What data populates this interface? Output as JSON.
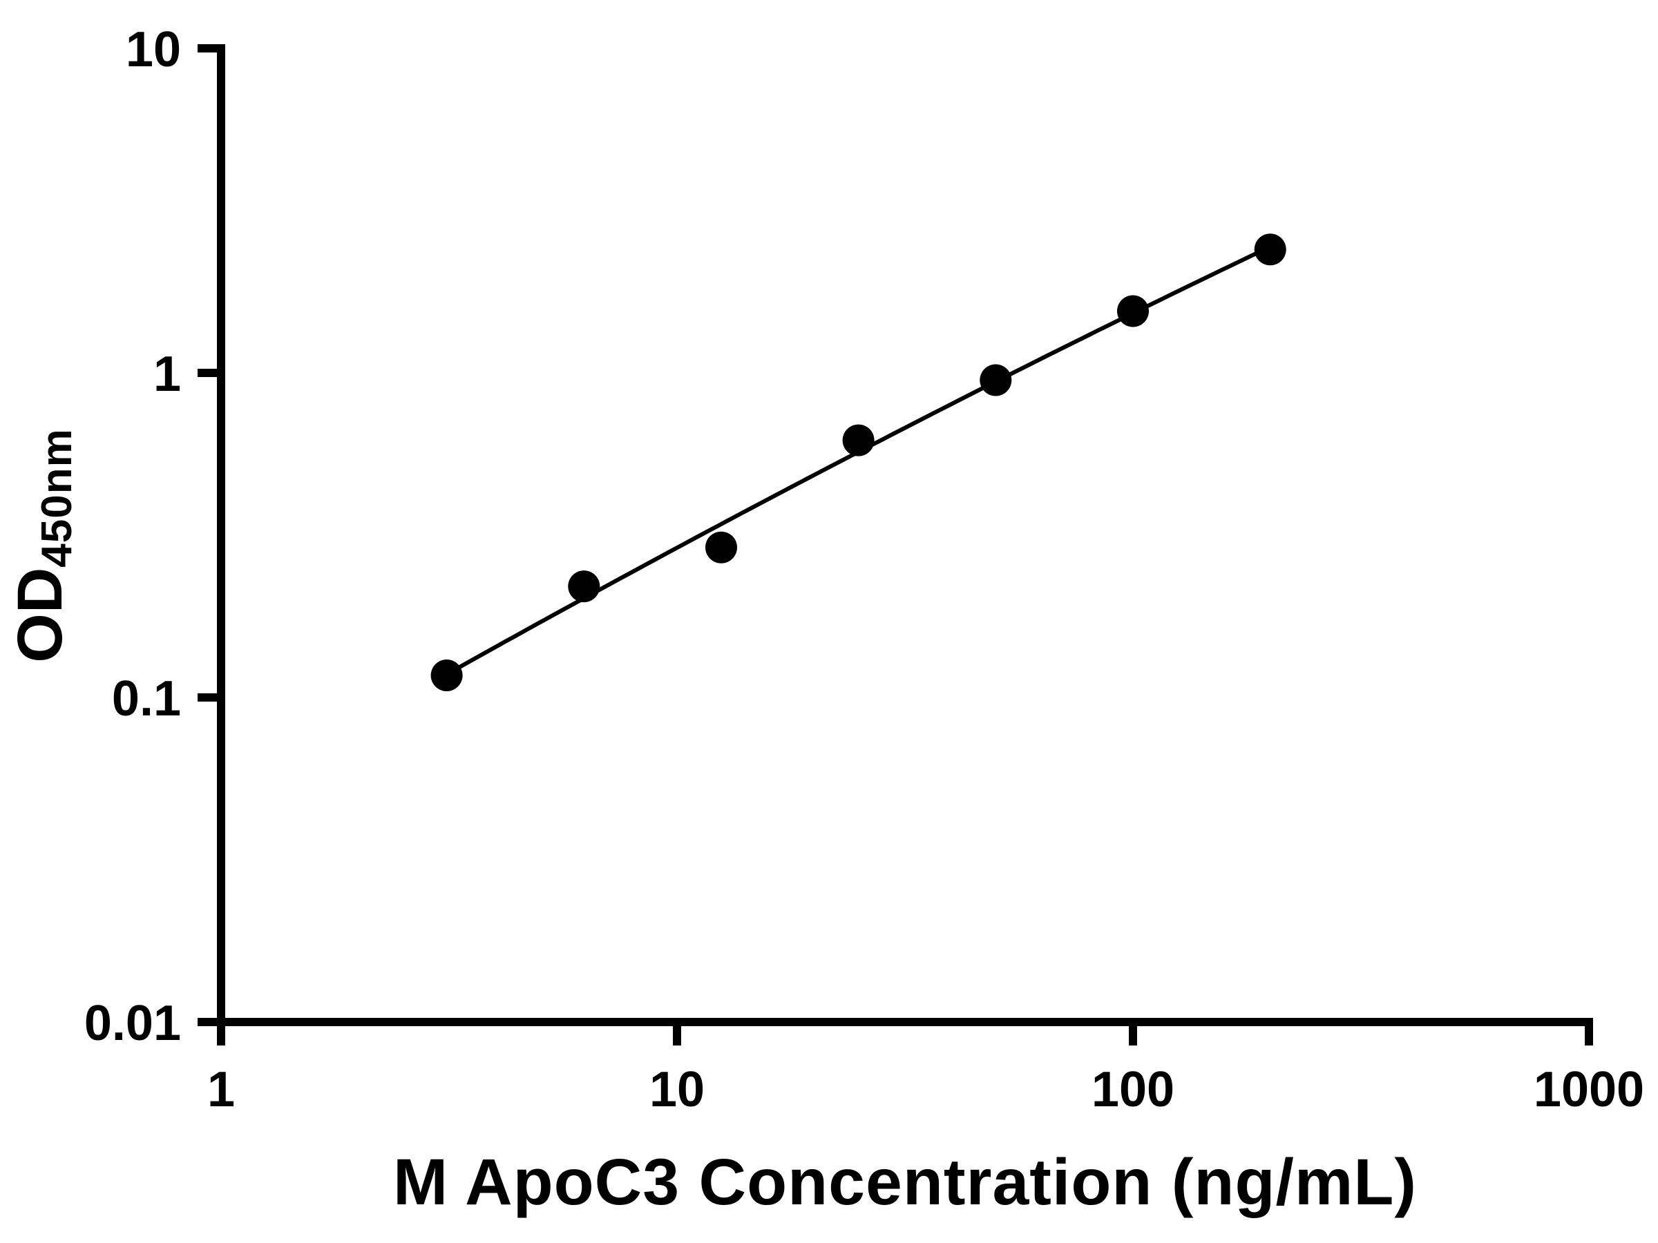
{
  "chart_data": {
    "type": "scatter",
    "title": "",
    "xlabel": "M ApoC3 Concentration (ng/mL)",
    "ylabel_main": "OD",
    "ylabel_sub": "450nm",
    "x_scale": "log10",
    "y_scale": "log10",
    "xlim": [
      1,
      1000
    ],
    "ylim": [
      0.01,
      10
    ],
    "x_ticks": [
      1,
      10,
      100,
      1000
    ],
    "x_tick_labels": [
      "1",
      "10",
      "100",
      "1000"
    ],
    "y_ticks": [
      0.01,
      0.1,
      1,
      10
    ],
    "y_tick_labels": [
      "0.01",
      "0.1",
      "1",
      "10"
    ],
    "points": {
      "x": [
        3.125,
        6.25,
        12.5,
        25,
        50,
        100,
        200
      ],
      "y": [
        0.117,
        0.22,
        0.29,
        0.62,
        0.95,
        1.55,
        2.4
      ]
    },
    "fit": "smooth curve through standards (log-log)",
    "grid": false,
    "legend": "none",
    "marker_color": "#000000",
    "line_color": "#000000",
    "axis_color": "#000000",
    "background": "#ffffff"
  }
}
